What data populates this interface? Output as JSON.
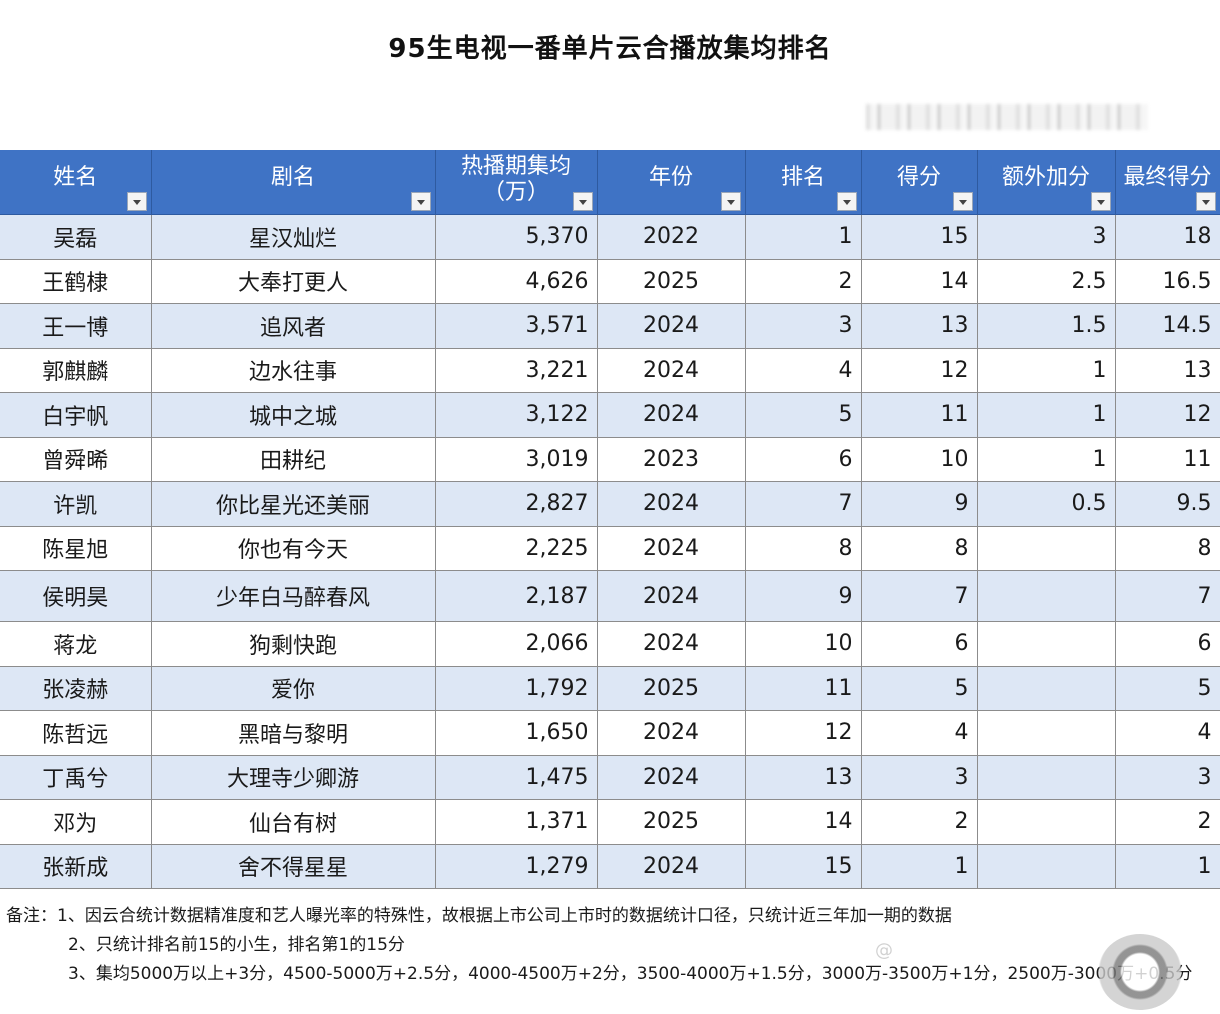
{
  "title": "95生电视一番单片云合播放集均排名",
  "columns": [
    {
      "label": "姓名"
    },
    {
      "label": "剧名"
    },
    {
      "label": "热播期集均（万）"
    },
    {
      "label": "年份"
    },
    {
      "label": "排名"
    },
    {
      "label": "得分"
    },
    {
      "label": "额外加分"
    },
    {
      "label": "最终得分"
    }
  ],
  "rows": [
    {
      "name": "吴磊",
      "drama": "星汉灿烂",
      "avg": "5,370",
      "year": "2022",
      "rank": "1",
      "score": "15",
      "bonus": "3",
      "final": "18"
    },
    {
      "name": "王鹤棣",
      "drama": "大奉打更人",
      "avg": "4,626",
      "year": "2025",
      "rank": "2",
      "score": "14",
      "bonus": "2.5",
      "final": "16.5"
    },
    {
      "name": "王一博",
      "drama": "追风者",
      "avg": "3,571",
      "year": "2024",
      "rank": "3",
      "score": "13",
      "bonus": "1.5",
      "final": "14.5"
    },
    {
      "name": "郭麒麟",
      "drama": "边水往事",
      "avg": "3,221",
      "year": "2024",
      "rank": "4",
      "score": "12",
      "bonus": "1",
      "final": "13"
    },
    {
      "name": "白宇帆",
      "drama": "城中之城",
      "avg": "3,122",
      "year": "2024",
      "rank": "5",
      "score": "11",
      "bonus": "1",
      "final": "12"
    },
    {
      "name": "曾舜晞",
      "drama": "田耕纪",
      "avg": "3,019",
      "year": "2023",
      "rank": "6",
      "score": "10",
      "bonus": "1",
      "final": "11"
    },
    {
      "name": "许凯",
      "drama": "你比星光还美丽",
      "avg": "2,827",
      "year": "2024",
      "rank": "7",
      "score": "9",
      "bonus": "0.5",
      "final": "9.5"
    },
    {
      "name": "陈星旭",
      "drama": "你也有今天",
      "avg": "2,225",
      "year": "2024",
      "rank": "8",
      "score": "8",
      "bonus": "",
      "final": "8"
    },
    {
      "name": "侯明昊",
      "drama": "少年白马醉春风",
      "avg": "2,187",
      "year": "2024",
      "rank": "9",
      "score": "7",
      "bonus": "",
      "final": "7"
    },
    {
      "name": "蒋龙",
      "drama": "狗剩快跑",
      "avg": "2,066",
      "year": "2024",
      "rank": "10",
      "score": "6",
      "bonus": "",
      "final": "6"
    },
    {
      "name": "张凌赫",
      "drama": "爱你",
      "avg": "1,792",
      "year": "2025",
      "rank": "11",
      "score": "5",
      "bonus": "",
      "final": "5"
    },
    {
      "name": "陈哲远",
      "drama": "黑暗与黎明",
      "avg": "1,650",
      "year": "2024",
      "rank": "12",
      "score": "4",
      "bonus": "",
      "final": "4"
    },
    {
      "name": "丁禹兮",
      "drama": "大理寺少卿游",
      "avg": "1,475",
      "year": "2024",
      "rank": "13",
      "score": "3",
      "bonus": "",
      "final": "3"
    },
    {
      "name": "邓为",
      "drama": "仙台有树",
      "avg": "1,371",
      "year": "2025",
      "rank": "14",
      "score": "2",
      "bonus": "",
      "final": "2"
    },
    {
      "name": "张新成",
      "drama": "舍不得星星",
      "avg": "1,279",
      "year": "2024",
      "rank": "15",
      "score": "1",
      "bonus": "",
      "final": "1"
    }
  ],
  "notes": [
    "备注：1、因云合统计数据精准度和艺人曝光率的特殊性，故根据上市公司上市时的数据统计口径，只统计近三年加一期的数据",
    "2、只统计排名前15的小生，排名第1的15分",
    "3、集均5000万以上+3分，4500-5000万+2.5分，4000-4500万+2分，3500-4000万+1.5分，3000万-3500万+1分，2500万-3000万+0.5分"
  ],
  "watermark": "@"
}
